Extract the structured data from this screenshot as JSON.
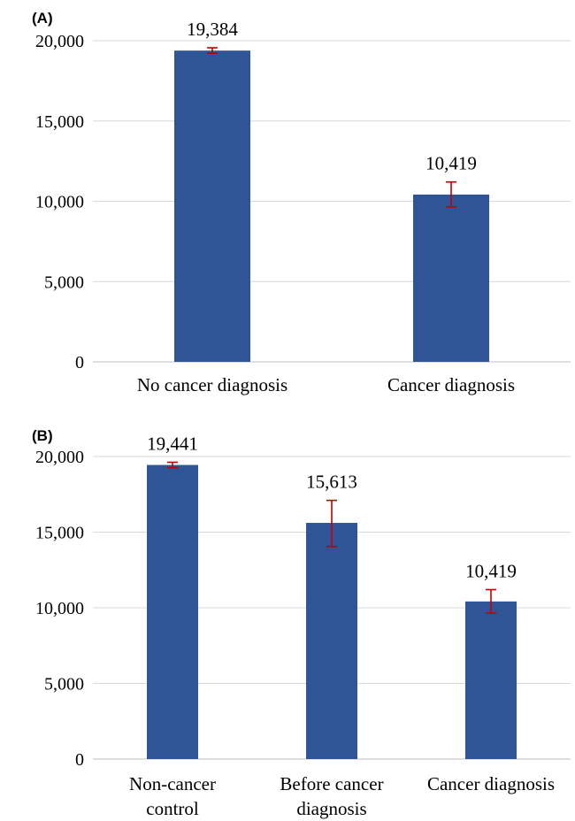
{
  "chart_data": [
    {
      "panel_label": "(A)",
      "type": "bar",
      "categories": [
        "No cancer diagnosis",
        "Cancer diagnosis"
      ],
      "category_lines": [
        [
          "No cancer diagnosis"
        ],
        [
          "Cancer diagnosis"
        ]
      ],
      "values": [
        19384,
        10419
      ],
      "value_labels": [
        "19,384",
        "10,419"
      ],
      "errors": [
        [
          19220,
          19560
        ],
        [
          9650,
          11200
        ]
      ],
      "ylim": [
        0,
        20000
      ],
      "yticks": [
        0,
        5000,
        10000,
        15000,
        20000
      ],
      "ytick_labels": [
        "0",
        "5,000",
        "10,000",
        "15,000",
        "20,000"
      ],
      "grid": true,
      "colors": {
        "bar": "#2f5597",
        "error": "#c00000"
      }
    },
    {
      "panel_label": "(B)",
      "type": "bar",
      "categories": [
        "Non-cancer control",
        "Before cancer diagnosis",
        "Cancer diagnosis"
      ],
      "category_lines": [
        [
          "Non-cancer",
          "control"
        ],
        [
          "Before cancer",
          "diagnosis"
        ],
        [
          "Cancer diagnosis"
        ]
      ],
      "values": [
        19441,
        15613,
        10419
      ],
      "value_labels": [
        "19,441",
        "15,613",
        "10,419"
      ],
      "errors": [
        [
          19270,
          19620
        ],
        [
          14050,
          17100
        ],
        [
          9650,
          11200
        ]
      ],
      "ylim": [
        0,
        20000
      ],
      "yticks": [
        0,
        5000,
        10000,
        15000,
        20000
      ],
      "ytick_labels": [
        "0",
        "5,000",
        "10,000",
        "15,000",
        "20,000"
      ],
      "grid": true,
      "colors": {
        "bar": "#2f5597",
        "error": "#c00000"
      }
    }
  ]
}
